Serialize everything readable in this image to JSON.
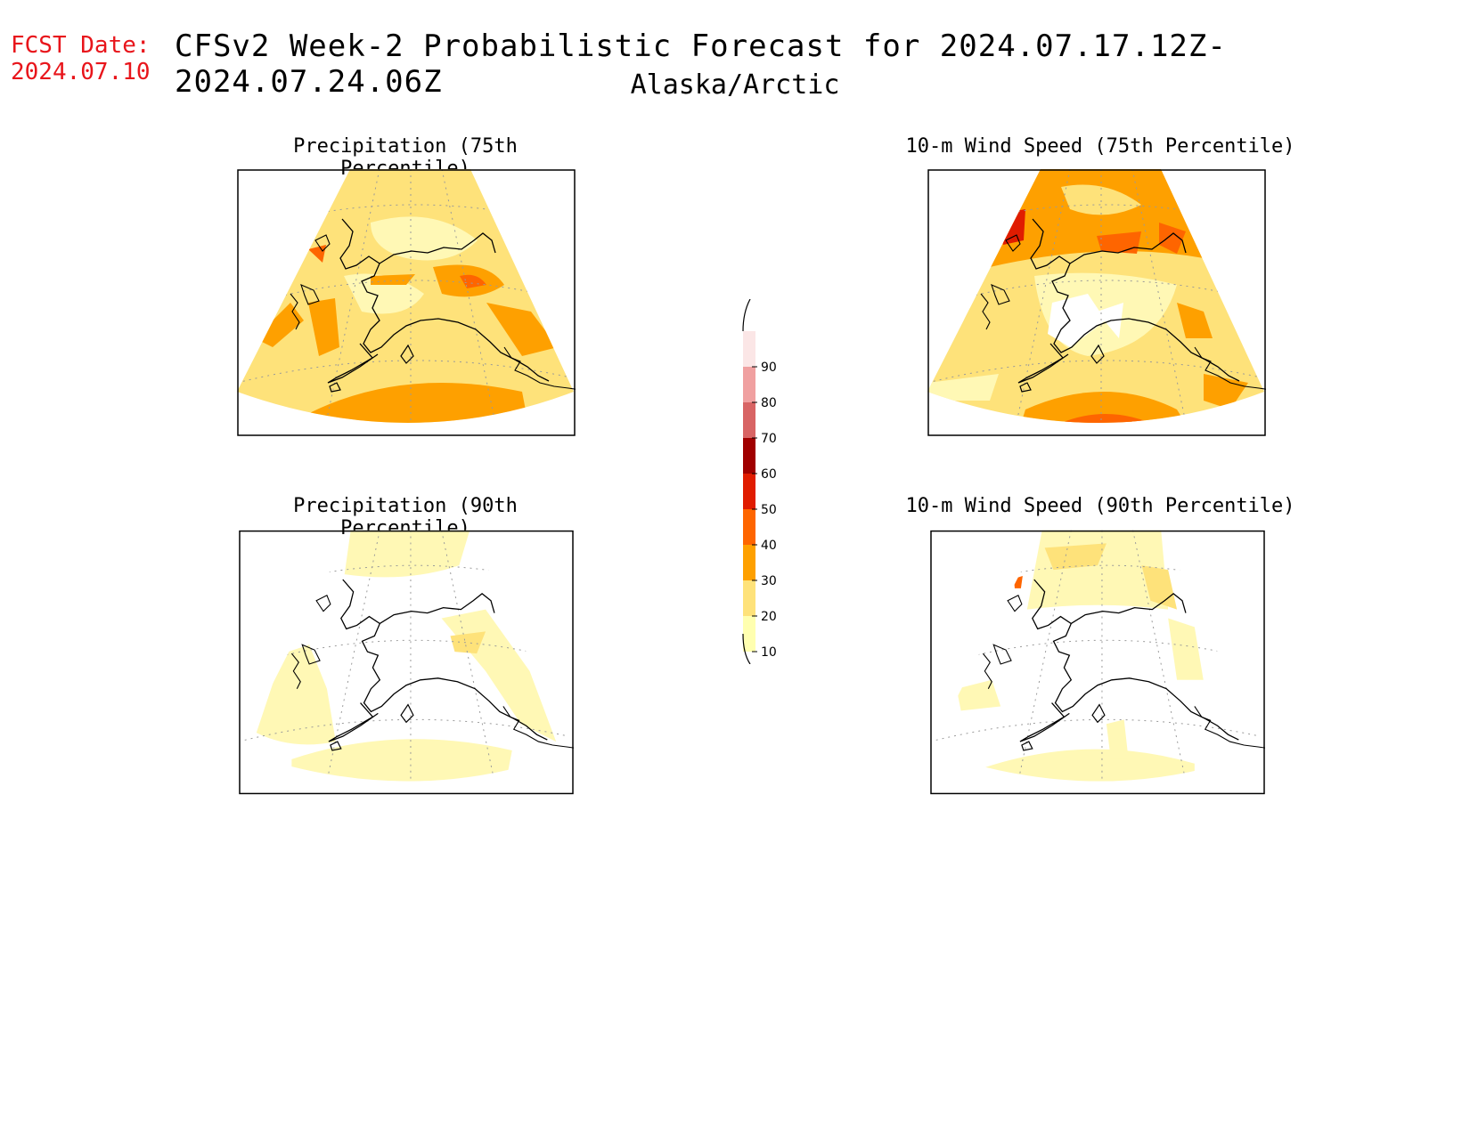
{
  "header": {
    "fcst_label": "FCST Date:",
    "fcst_date": "2024.07.10",
    "title": "CFSv2 Week-2 Probabilistic Forecast for 2024.07.17.12Z-2024.07.24.06Z",
    "subtitle": "Alaska/Arctic"
  },
  "panels": [
    {
      "title": "Precipitation (75th Percentile)"
    },
    {
      "title": "10-m Wind Speed (75th Percentile)"
    },
    {
      "title": "Precipitation (90th Percentile)"
    },
    {
      "title": "10-m Wind Speed (90th Percentile)"
    }
  ],
  "colorbar": {
    "labels": [
      "90",
      "80",
      "70",
      "60",
      "50",
      "40",
      "30",
      "20",
      "10"
    ],
    "colors": [
      "#fbe6e6",
      "#f0a0a0",
      "#d86464",
      "#a00000",
      "#e01c00",
      "#fe6500",
      "#fea000",
      "#fee27a",
      "#ffffb0"
    ]
  },
  "colors": {
    "c10": "#fff8b5",
    "c20": "#fee27a",
    "c30": "#fea000",
    "c40": "#fe6500",
    "c50": "#e01c00",
    "fcst_text": "#e8151b"
  }
}
